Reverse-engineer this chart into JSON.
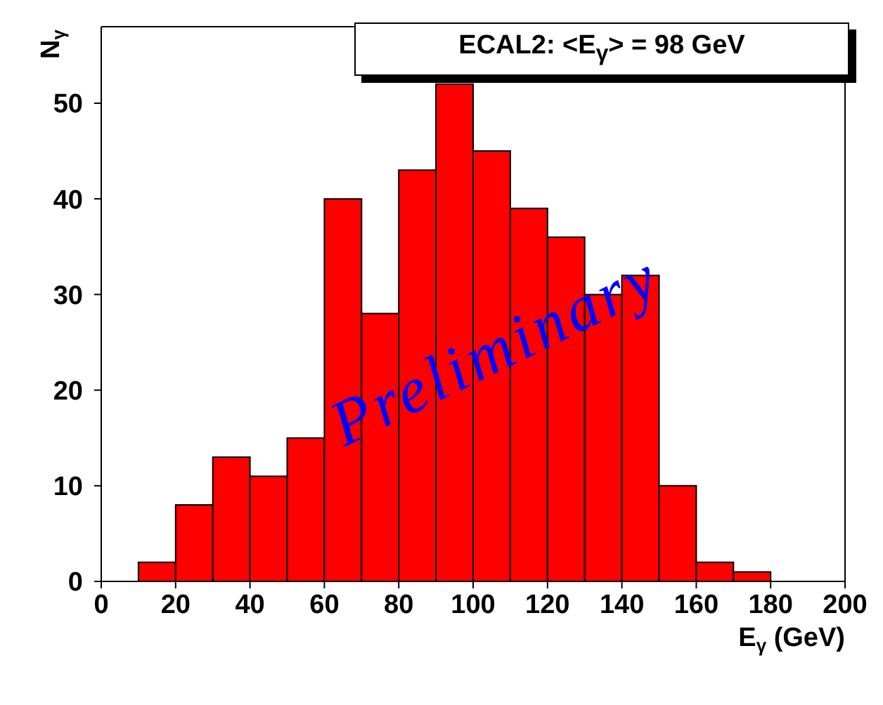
{
  "chart_data": {
    "type": "histogram",
    "title": "ECAL2: <E$_{γ}$> = 98 GeV",
    "xlabel": "E$_{γ}$ (GeV)",
    "ylabel": "N$_{γ}$",
    "bins": [
      10,
      20,
      30,
      40,
      50,
      60,
      70,
      80,
      90,
      100,
      110,
      120,
      130,
      140,
      150,
      160,
      170,
      180
    ],
    "values": [
      2,
      8,
      13,
      11,
      15,
      40,
      28,
      43,
      52,
      45,
      39,
      36,
      30,
      32,
      10,
      2,
      1
    ],
    "color": "#ff0000",
    "xlim": [
      0,
      200
    ],
    "xticks": [
      0,
      20,
      40,
      60,
      80,
      100,
      120,
      140,
      160,
      180,
      200
    ],
    "ylim": [
      0,
      58
    ],
    "yticks": [
      0,
      10,
      20,
      30,
      40,
      50
    ],
    "annotations": [
      "Preliminary"
    ]
  }
}
